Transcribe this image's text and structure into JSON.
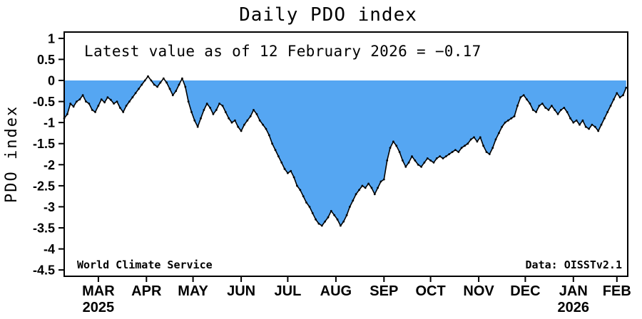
{
  "chart_data": {
    "type": "area",
    "title": "Daily PDO index",
    "annotation": "Latest value as of 12 February 2026 = −0.17",
    "latest_value": -0.17,
    "latest_date": "12 February 2026",
    "ylabel": "PDO index",
    "footer_left": "World Climate Service",
    "footer_right": "Data: OISSTv2.1",
    "colors": {
      "fill": "#55A6F2",
      "line": "#000000",
      "frame": "#000000"
    },
    "ylim": [
      -4.65,
      1.15
    ],
    "y_ticks": [
      1,
      0.5,
      0,
      -0.5,
      -1,
      -1.5,
      -2,
      -2.5,
      -3,
      -3.5,
      -4,
      -4.5
    ],
    "x_range_days": [
      0,
      363
    ],
    "x_months": [
      {
        "label": "MAR",
        "year": "2025",
        "label_day": 22
      },
      {
        "label": "APR",
        "label_day": 53
      },
      {
        "label": "MAY",
        "label_day": 83
      },
      {
        "label": "JUN",
        "label_day": 114
      },
      {
        "label": "JUL",
        "label_day": 144
      },
      {
        "label": "AUG",
        "label_day": 175
      },
      {
        "label": "SEP",
        "label_day": 206
      },
      {
        "label": "OCT",
        "label_day": 236
      },
      {
        "label": "NOV",
        "label_day": 267
      },
      {
        "label": "DEC",
        "label_day": 297
      },
      {
        "label": "JAN",
        "year": "2026",
        "label_day": 328
      },
      {
        "label": "FEB",
        "label_day": 356
      }
    ],
    "series": {
      "name": "Daily PDO index",
      "start_day": 0,
      "step_days": 2,
      "values": [
        -0.9,
        -0.8,
        -0.55,
        -0.62,
        -0.5,
        -0.45,
        -0.35,
        -0.5,
        -0.55,
        -0.7,
        -0.75,
        -0.6,
        -0.45,
        -0.52,
        -0.4,
        -0.46,
        -0.55,
        -0.5,
        -0.65,
        -0.75,
        -0.6,
        -0.5,
        -0.4,
        -0.3,
        -0.2,
        -0.1,
        0,
        0.1,
        0,
        -0.1,
        -0.15,
        -0.05,
        0.05,
        -0.05,
        -0.2,
        -0.35,
        -0.25,
        -0.1,
        0.05,
        -0.15,
        -0.5,
        -0.75,
        -0.95,
        -1.1,
        -0.9,
        -0.7,
        -0.55,
        -0.65,
        -0.8,
        -0.7,
        -0.55,
        -0.6,
        -0.75,
        -0.9,
        -1,
        -0.95,
        -1.1,
        -1.2,
        -1.05,
        -0.95,
        -0.85,
        -0.7,
        -0.8,
        -0.95,
        -1.05,
        -1.15,
        -1.3,
        -1.5,
        -1.65,
        -1.8,
        -1.95,
        -2.1,
        -2.2,
        -2.15,
        -2.3,
        -2.5,
        -2.6,
        -2.75,
        -2.9,
        -3,
        -3.15,
        -3.3,
        -3.4,
        -3.45,
        -3.35,
        -3.25,
        -3.1,
        -3.2,
        -3.3,
        -3.45,
        -3.35,
        -3.2,
        -3,
        -2.85,
        -2.7,
        -2.6,
        -2.5,
        -2.55,
        -2.45,
        -2.55,
        -2.7,
        -2.55,
        -2.4,
        -2.35,
        -1.9,
        -1.6,
        -1.45,
        -1.55,
        -1.7,
        -1.9,
        -2.05,
        -1.95,
        -1.8,
        -1.9,
        -2,
        -2.05,
        -1.95,
        -1.85,
        -1.9,
        -1.95,
        -1.85,
        -1.8,
        -1.85,
        -1.8,
        -1.75,
        -1.7,
        -1.65,
        -1.7,
        -1.6,
        -1.55,
        -1.5,
        -1.4,
        -1.35,
        -1.45,
        -1.35,
        -1.55,
        -1.7,
        -1.75,
        -1.6,
        -1.4,
        -1.25,
        -1.1,
        -1,
        -0.95,
        -0.9,
        -0.85,
        -0.6,
        -0.4,
        -0.35,
        -0.45,
        -0.55,
        -0.7,
        -0.75,
        -0.6,
        -0.55,
        -0.65,
        -0.7,
        -0.6,
        -0.7,
        -0.8,
        -0.7,
        -0.65,
        -0.75,
        -0.9,
        -1,
        -0.95,
        -1.05,
        -0.95,
        -1.1,
        -1.15,
        -1.05,
        -1.1,
        -1.2,
        -1.05,
        -0.9,
        -0.75,
        -0.6,
        -0.45,
        -0.3,
        -0.4,
        -0.35,
        -0.17
      ]
    }
  }
}
